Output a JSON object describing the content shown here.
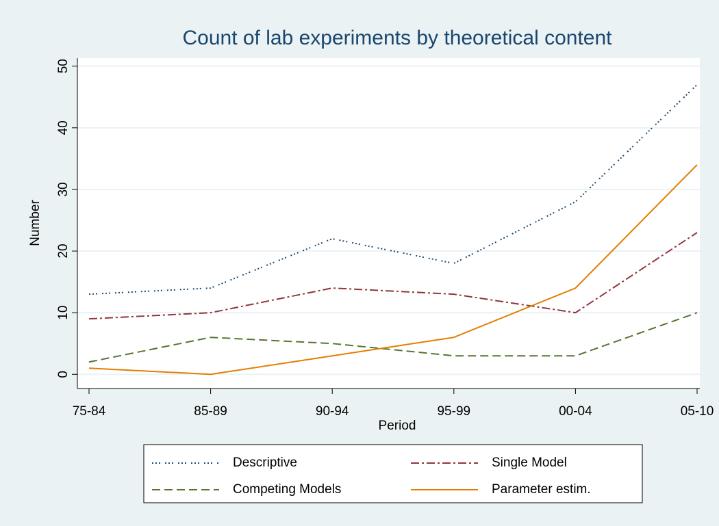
{
  "chart_data": {
    "type": "line",
    "title": "Count of lab experiments by theoretical content",
    "x_label": "Period",
    "y_label": "Number",
    "categories": [
      "75-84",
      "85-89",
      "90-94",
      "95-99",
      "00-04",
      "05-10"
    ],
    "series": [
      {
        "name": "Descriptive",
        "color": "#1a476f",
        "dash": "2,3,2,3,2,7",
        "values": [
          13,
          14,
          22,
          18,
          28,
          47
        ]
      },
      {
        "name": "Single Model",
        "color": "#90353b",
        "dash": "12,4,3,4",
        "values": [
          9,
          10,
          14,
          13,
          10,
          23
        ]
      },
      {
        "name": "Competing Models",
        "color": "#55752f",
        "dash": "12,6",
        "values": [
          2,
          6,
          5,
          3,
          3,
          10
        ]
      },
      {
        "name": "Parameter estim.",
        "color": "#e37e00",
        "dash": "none",
        "values": [
          1,
          0,
          3,
          6,
          14,
          34
        ]
      }
    ],
    "ylim": [
      -2.3,
      51.3
    ],
    "yticks": [
      0,
      10,
      20,
      30,
      40,
      50
    ],
    "grid": true
  }
}
